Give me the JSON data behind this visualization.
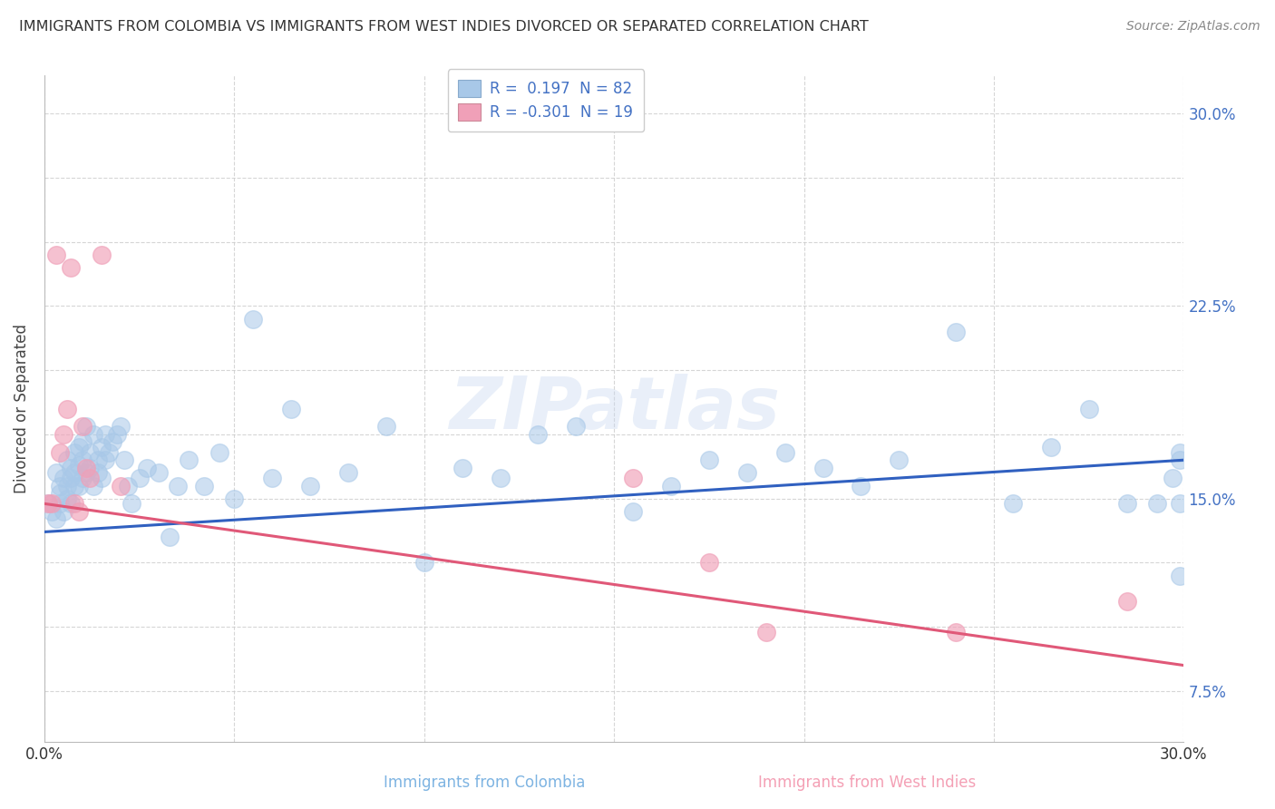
{
  "title": "IMMIGRANTS FROM COLOMBIA VS IMMIGRANTS FROM WEST INDIES DIVORCED OR SEPARATED CORRELATION CHART",
  "source": "Source: ZipAtlas.com",
  "xlabel_bottom": [
    "Immigrants from Colombia",
    "Immigrants from West Indies"
  ],
  "ylabel": "Divorced or Separated",
  "watermark": "ZIPatlas",
  "x_min": 0.0,
  "x_max": 0.3,
  "y_min": 0.055,
  "y_max": 0.315,
  "x_ticks": [
    0.0,
    0.05,
    0.1,
    0.15,
    0.2,
    0.25,
    0.3
  ],
  "y_ticks": [
    0.075,
    0.1,
    0.125,
    0.15,
    0.175,
    0.2,
    0.225,
    0.25,
    0.275,
    0.3
  ],
  "y_tick_labels": [
    "7.5%",
    "",
    "",
    "15.0%",
    "",
    "",
    "22.5%",
    "",
    "",
    "30.0%"
  ],
  "x_tick_labels": [
    "0.0%",
    "",
    "",
    "",
    "",
    "",
    "30.0%"
  ],
  "legend_r1": "R =  0.197  N = 82",
  "legend_r2": "R = -0.301  N = 19",
  "color_blue": "#a8c8e8",
  "color_pink": "#f0a0b8",
  "line_blue": "#3060c0",
  "line_pink": "#e05878",
  "colombia_x": [
    0.001,
    0.002,
    0.003,
    0.003,
    0.004,
    0.004,
    0.004,
    0.005,
    0.005,
    0.006,
    0.006,
    0.006,
    0.007,
    0.007,
    0.007,
    0.008,
    0.008,
    0.008,
    0.009,
    0.009,
    0.009,
    0.01,
    0.01,
    0.01,
    0.011,
    0.011,
    0.012,
    0.012,
    0.013,
    0.013,
    0.014,
    0.014,
    0.015,
    0.015,
    0.016,
    0.016,
    0.017,
    0.018,
    0.019,
    0.02,
    0.021,
    0.022,
    0.023,
    0.025,
    0.027,
    0.03,
    0.033,
    0.035,
    0.038,
    0.042,
    0.046,
    0.05,
    0.055,
    0.06,
    0.065,
    0.07,
    0.08,
    0.09,
    0.1,
    0.11,
    0.12,
    0.13,
    0.14,
    0.155,
    0.165,
    0.175,
    0.185,
    0.195,
    0.205,
    0.215,
    0.225,
    0.24,
    0.255,
    0.265,
    0.275,
    0.285,
    0.293,
    0.297,
    0.299,
    0.299,
    0.299,
    0.299
  ],
  "colombia_y": [
    0.148,
    0.145,
    0.16,
    0.142,
    0.155,
    0.148,
    0.152,
    0.158,
    0.145,
    0.165,
    0.155,
    0.15,
    0.162,
    0.158,
    0.148,
    0.168,
    0.16,
    0.155,
    0.17,
    0.163,
    0.155,
    0.165,
    0.158,
    0.172,
    0.16,
    0.178,
    0.162,
    0.168,
    0.155,
    0.175,
    0.16,
    0.165,
    0.17,
    0.158,
    0.165,
    0.175,
    0.168,
    0.172,
    0.175,
    0.178,
    0.165,
    0.155,
    0.148,
    0.158,
    0.162,
    0.16,
    0.135,
    0.155,
    0.165,
    0.155,
    0.168,
    0.15,
    0.22,
    0.158,
    0.185,
    0.155,
    0.16,
    0.178,
    0.125,
    0.162,
    0.158,
    0.175,
    0.178,
    0.145,
    0.155,
    0.165,
    0.16,
    0.168,
    0.162,
    0.155,
    0.165,
    0.215,
    0.148,
    0.17,
    0.185,
    0.148,
    0.148,
    0.158,
    0.168,
    0.148,
    0.165,
    0.12
  ],
  "westindies_x": [
    0.001,
    0.002,
    0.003,
    0.004,
    0.005,
    0.006,
    0.007,
    0.008,
    0.009,
    0.01,
    0.011,
    0.012,
    0.015,
    0.02,
    0.155,
    0.175,
    0.19,
    0.24,
    0.285
  ],
  "westindies_y": [
    0.148,
    0.148,
    0.245,
    0.168,
    0.175,
    0.185,
    0.24,
    0.148,
    0.145,
    0.178,
    0.162,
    0.158,
    0.245,
    0.155,
    0.158,
    0.125,
    0.098,
    0.098,
    0.11
  ],
  "blue_line_x": [
    0.0,
    0.3
  ],
  "blue_line_y": [
    0.137,
    0.165
  ],
  "pink_line_x": [
    0.0,
    0.3
  ],
  "pink_line_y": [
    0.148,
    0.085
  ],
  "grid_color": "#cccccc",
  "background_color": "#ffffff"
}
